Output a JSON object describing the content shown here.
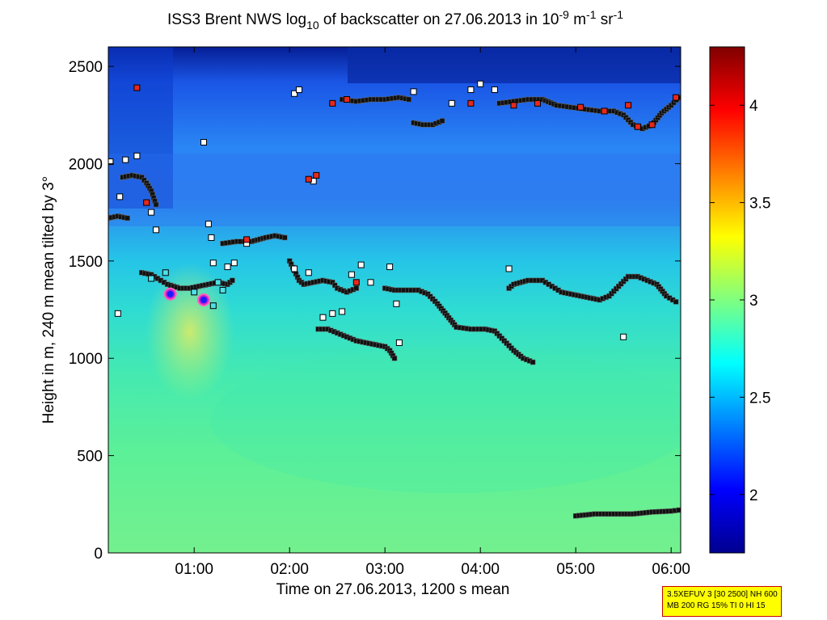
{
  "chart_data": {
    "type": "heatmap",
    "title": {
      "prefix": "ISS3 Brent NWS log",
      "log_base": "10",
      "middle": " of backscatter on 27.06.2013 in 10",
      "exp1": "-9",
      "unit_m": " m",
      "exp2": "-1",
      "unit_sr": " sr",
      "exp3": "-1"
    },
    "xlabel": "Time on 27.06.2013, 1200 s mean",
    "ylabel": "Height in m, 240 m mean tilted by 3°",
    "xlim_hours": [
      0.1,
      6.1
    ],
    "ylim": [
      0,
      2600
    ],
    "xticks": [
      {
        "value": 1,
        "label": "01:00"
      },
      {
        "value": 2,
        "label": "02:00"
      },
      {
        "value": 3,
        "label": "03:00"
      },
      {
        "value": 4,
        "label": "04:00"
      },
      {
        "value": 5,
        "label": "05:00"
      },
      {
        "value": 6,
        "label": "06:00"
      }
    ],
    "yticks": [
      0,
      500,
      1000,
      1500,
      2000,
      2500
    ],
    "colorbar": {
      "range": [
        1.7,
        4.3
      ],
      "ticks": [
        "2",
        "2.5",
        "3",
        "3.5",
        "4"
      ],
      "colormap": "jet"
    },
    "layers": [
      {
        "name": "",
        "points": [
          [
            0.1,
            1720
          ],
          [
            0.2,
            1730
          ],
          [
            0.3,
            1720
          ]
        ]
      },
      {
        "name": "",
        "points": [
          [
            0.25,
            1930
          ],
          [
            0.35,
            1940
          ],
          [
            0.45,
            1930
          ],
          [
            0.5,
            1900
          ],
          [
            0.55,
            1860
          ],
          [
            0.6,
            1790
          ]
        ]
      },
      {
        "name": "",
        "points": [
          [
            0.45,
            1440
          ],
          [
            0.55,
            1430
          ],
          [
            0.65,
            1400
          ],
          [
            0.72,
            1380
          ],
          [
            0.85,
            1360
          ],
          [
            0.95,
            1360
          ],
          [
            1.05,
            1370
          ],
          [
            1.15,
            1380
          ],
          [
            1.25,
            1390
          ],
          [
            1.35,
            1380
          ],
          [
            1.4,
            1400
          ]
        ]
      },
      {
        "name": "",
        "points": [
          [
            1.3,
            1590
          ],
          [
            1.45,
            1600
          ],
          [
            1.6,
            1600
          ],
          [
            1.75,
            1620
          ],
          [
            1.85,
            1630
          ],
          [
            1.95,
            1620
          ]
        ]
      },
      {
        "name": "",
        "points": [
          [
            2.0,
            1500
          ],
          [
            2.05,
            1450
          ],
          [
            2.1,
            1400
          ],
          [
            2.15,
            1380
          ],
          [
            2.25,
            1390
          ],
          [
            2.35,
            1400
          ],
          [
            2.45,
            1390
          ],
          [
            2.5,
            1360
          ],
          [
            2.6,
            1340
          ],
          [
            2.7,
            1360
          ]
        ]
      },
      {
        "name": "",
        "points": [
          [
            2.3,
            1150
          ],
          [
            2.4,
            1150
          ],
          [
            2.5,
            1130
          ],
          [
            2.6,
            1110
          ],
          [
            2.7,
            1090
          ],
          [
            2.8,
            1080
          ],
          [
            2.9,
            1070
          ],
          [
            3.0,
            1060
          ],
          [
            3.05,
            1040
          ],
          [
            3.1,
            1000
          ]
        ]
      },
      {
        "name": "",
        "points": [
          [
            3.0,
            1360
          ],
          [
            3.1,
            1350
          ],
          [
            3.2,
            1350
          ],
          [
            3.35,
            1350
          ],
          [
            3.45,
            1330
          ],
          [
            3.55,
            1280
          ],
          [
            3.65,
            1220
          ],
          [
            3.75,
            1160
          ],
          [
            3.9,
            1150
          ],
          [
            4.05,
            1150
          ],
          [
            4.15,
            1140
          ],
          [
            4.25,
            1090
          ],
          [
            4.35,
            1040
          ],
          [
            4.45,
            1000
          ],
          [
            4.55,
            980
          ]
        ]
      },
      {
        "name": "",
        "points": [
          [
            4.3,
            1360
          ],
          [
            4.35,
            1380
          ],
          [
            4.5,
            1400
          ],
          [
            4.65,
            1400
          ],
          [
            4.75,
            1370
          ],
          [
            4.85,
            1340
          ],
          [
            4.95,
            1330
          ],
          [
            5.05,
            1320
          ],
          [
            5.15,
            1310
          ],
          [
            5.25,
            1300
          ],
          [
            5.35,
            1320
          ],
          [
            5.45,
            1370
          ],
          [
            5.55,
            1420
          ],
          [
            5.65,
            1420
          ],
          [
            5.75,
            1400
          ],
          [
            5.85,
            1380
          ],
          [
            5.95,
            1320
          ],
          [
            6.05,
            1290
          ]
        ]
      },
      {
        "name": "",
        "points": [
          [
            5.0,
            190
          ],
          [
            5.2,
            200
          ],
          [
            5.4,
            200
          ],
          [
            5.6,
            200
          ],
          [
            5.8,
            210
          ],
          [
            6.0,
            215
          ],
          [
            6.08,
            220
          ]
        ]
      },
      {
        "name": "",
        "points": [
          [
            2.55,
            2330
          ],
          [
            2.7,
            2320
          ],
          [
            2.85,
            2330
          ],
          [
            3.0,
            2330
          ],
          [
            3.15,
            2340
          ],
          [
            3.25,
            2330
          ]
        ]
      },
      {
        "name": "",
        "points": [
          [
            3.3,
            2210
          ],
          [
            3.4,
            2200
          ],
          [
            3.5,
            2200
          ],
          [
            3.6,
            2220
          ]
        ]
      },
      {
        "name": "",
        "points": [
          [
            4.2,
            2310
          ],
          [
            4.35,
            2320
          ],
          [
            4.5,
            2330
          ],
          [
            4.65,
            2330
          ],
          [
            4.8,
            2300
          ],
          [
            4.95,
            2290
          ],
          [
            5.1,
            2280
          ],
          [
            5.25,
            2270
          ],
          [
            5.4,
            2270
          ],
          [
            5.5,
            2250
          ],
          [
            5.6,
            2200
          ],
          [
            5.7,
            2180
          ],
          [
            5.8,
            2200
          ],
          [
            5.9,
            2260
          ],
          [
            6.0,
            2300
          ],
          [
            6.08,
            2340
          ]
        ]
      }
    ],
    "scatter_white": [
      [
        0.12,
        2010
      ],
      [
        0.22,
        1830
      ],
      [
        0.28,
        2020
      ],
      [
        0.4,
        2040
      ],
      [
        0.55,
        1750
      ],
      [
        0.6,
        1660
      ],
      [
        1.1,
        2110
      ],
      [
        1.15,
        1690
      ],
      [
        1.18,
        1620
      ],
      [
        1.2,
        1490
      ],
      [
        1.35,
        1470
      ],
      [
        1.42,
        1490
      ],
      [
        1.55,
        1590
      ],
      [
        2.05,
        1460
      ],
      [
        2.2,
        1440
      ],
      [
        2.25,
        1910
      ],
      [
        2.35,
        1210
      ],
      [
        2.45,
        1230
      ],
      [
        2.55,
        1240
      ],
      [
        2.65,
        1430
      ],
      [
        2.75,
        1480
      ],
      [
        2.85,
        1390
      ],
      [
        3.05,
        1470
      ],
      [
        3.12,
        1280
      ],
      [
        2.05,
        2360
      ],
      [
        2.1,
        2380
      ],
      [
        3.3,
        2370
      ],
      [
        3.7,
        2310
      ],
      [
        3.9,
        2380
      ],
      [
        4.0,
        2410
      ],
      [
        4.15,
        2380
      ],
      [
        0.2,
        1230
      ],
      [
        5.5,
        1110
      ],
      [
        4.3,
        1460
      ],
      [
        3.15,
        1080
      ]
    ],
    "scatter_red": [
      [
        0.4,
        2390
      ],
      [
        0.5,
        1800
      ],
      [
        2.2,
        1920
      ],
      [
        2.28,
        1940
      ],
      [
        2.7,
        1390
      ],
      [
        2.45,
        2310
      ],
      [
        2.6,
        2330
      ],
      [
        3.9,
        2310
      ],
      [
        4.35,
        2300
      ],
      [
        4.6,
        2310
      ],
      [
        5.05,
        2290
      ],
      [
        5.3,
        2270
      ],
      [
        5.55,
        2300
      ],
      [
        5.65,
        2190
      ],
      [
        5.8,
        2200
      ],
      [
        6.05,
        2340
      ],
      [
        1.55,
        1610
      ]
    ],
    "scatter_cyan": [
      [
        0.55,
        1410
      ],
      [
        0.7,
        1440
      ],
      [
        1.0,
        1340
      ],
      [
        1.1,
        1300
      ],
      [
        1.2,
        1270
      ],
      [
        1.25,
        1390
      ],
      [
        1.3,
        1350
      ]
    ],
    "hotspots": [
      [
        0.75,
        1330
      ],
      [
        1.1,
        1300
      ]
    ]
  },
  "infobox": {
    "line1": "3.5XEFUV 3 [30 2500] NH 600",
    "line2": "MB 200 RG 15% TI 0 HI 15"
  }
}
